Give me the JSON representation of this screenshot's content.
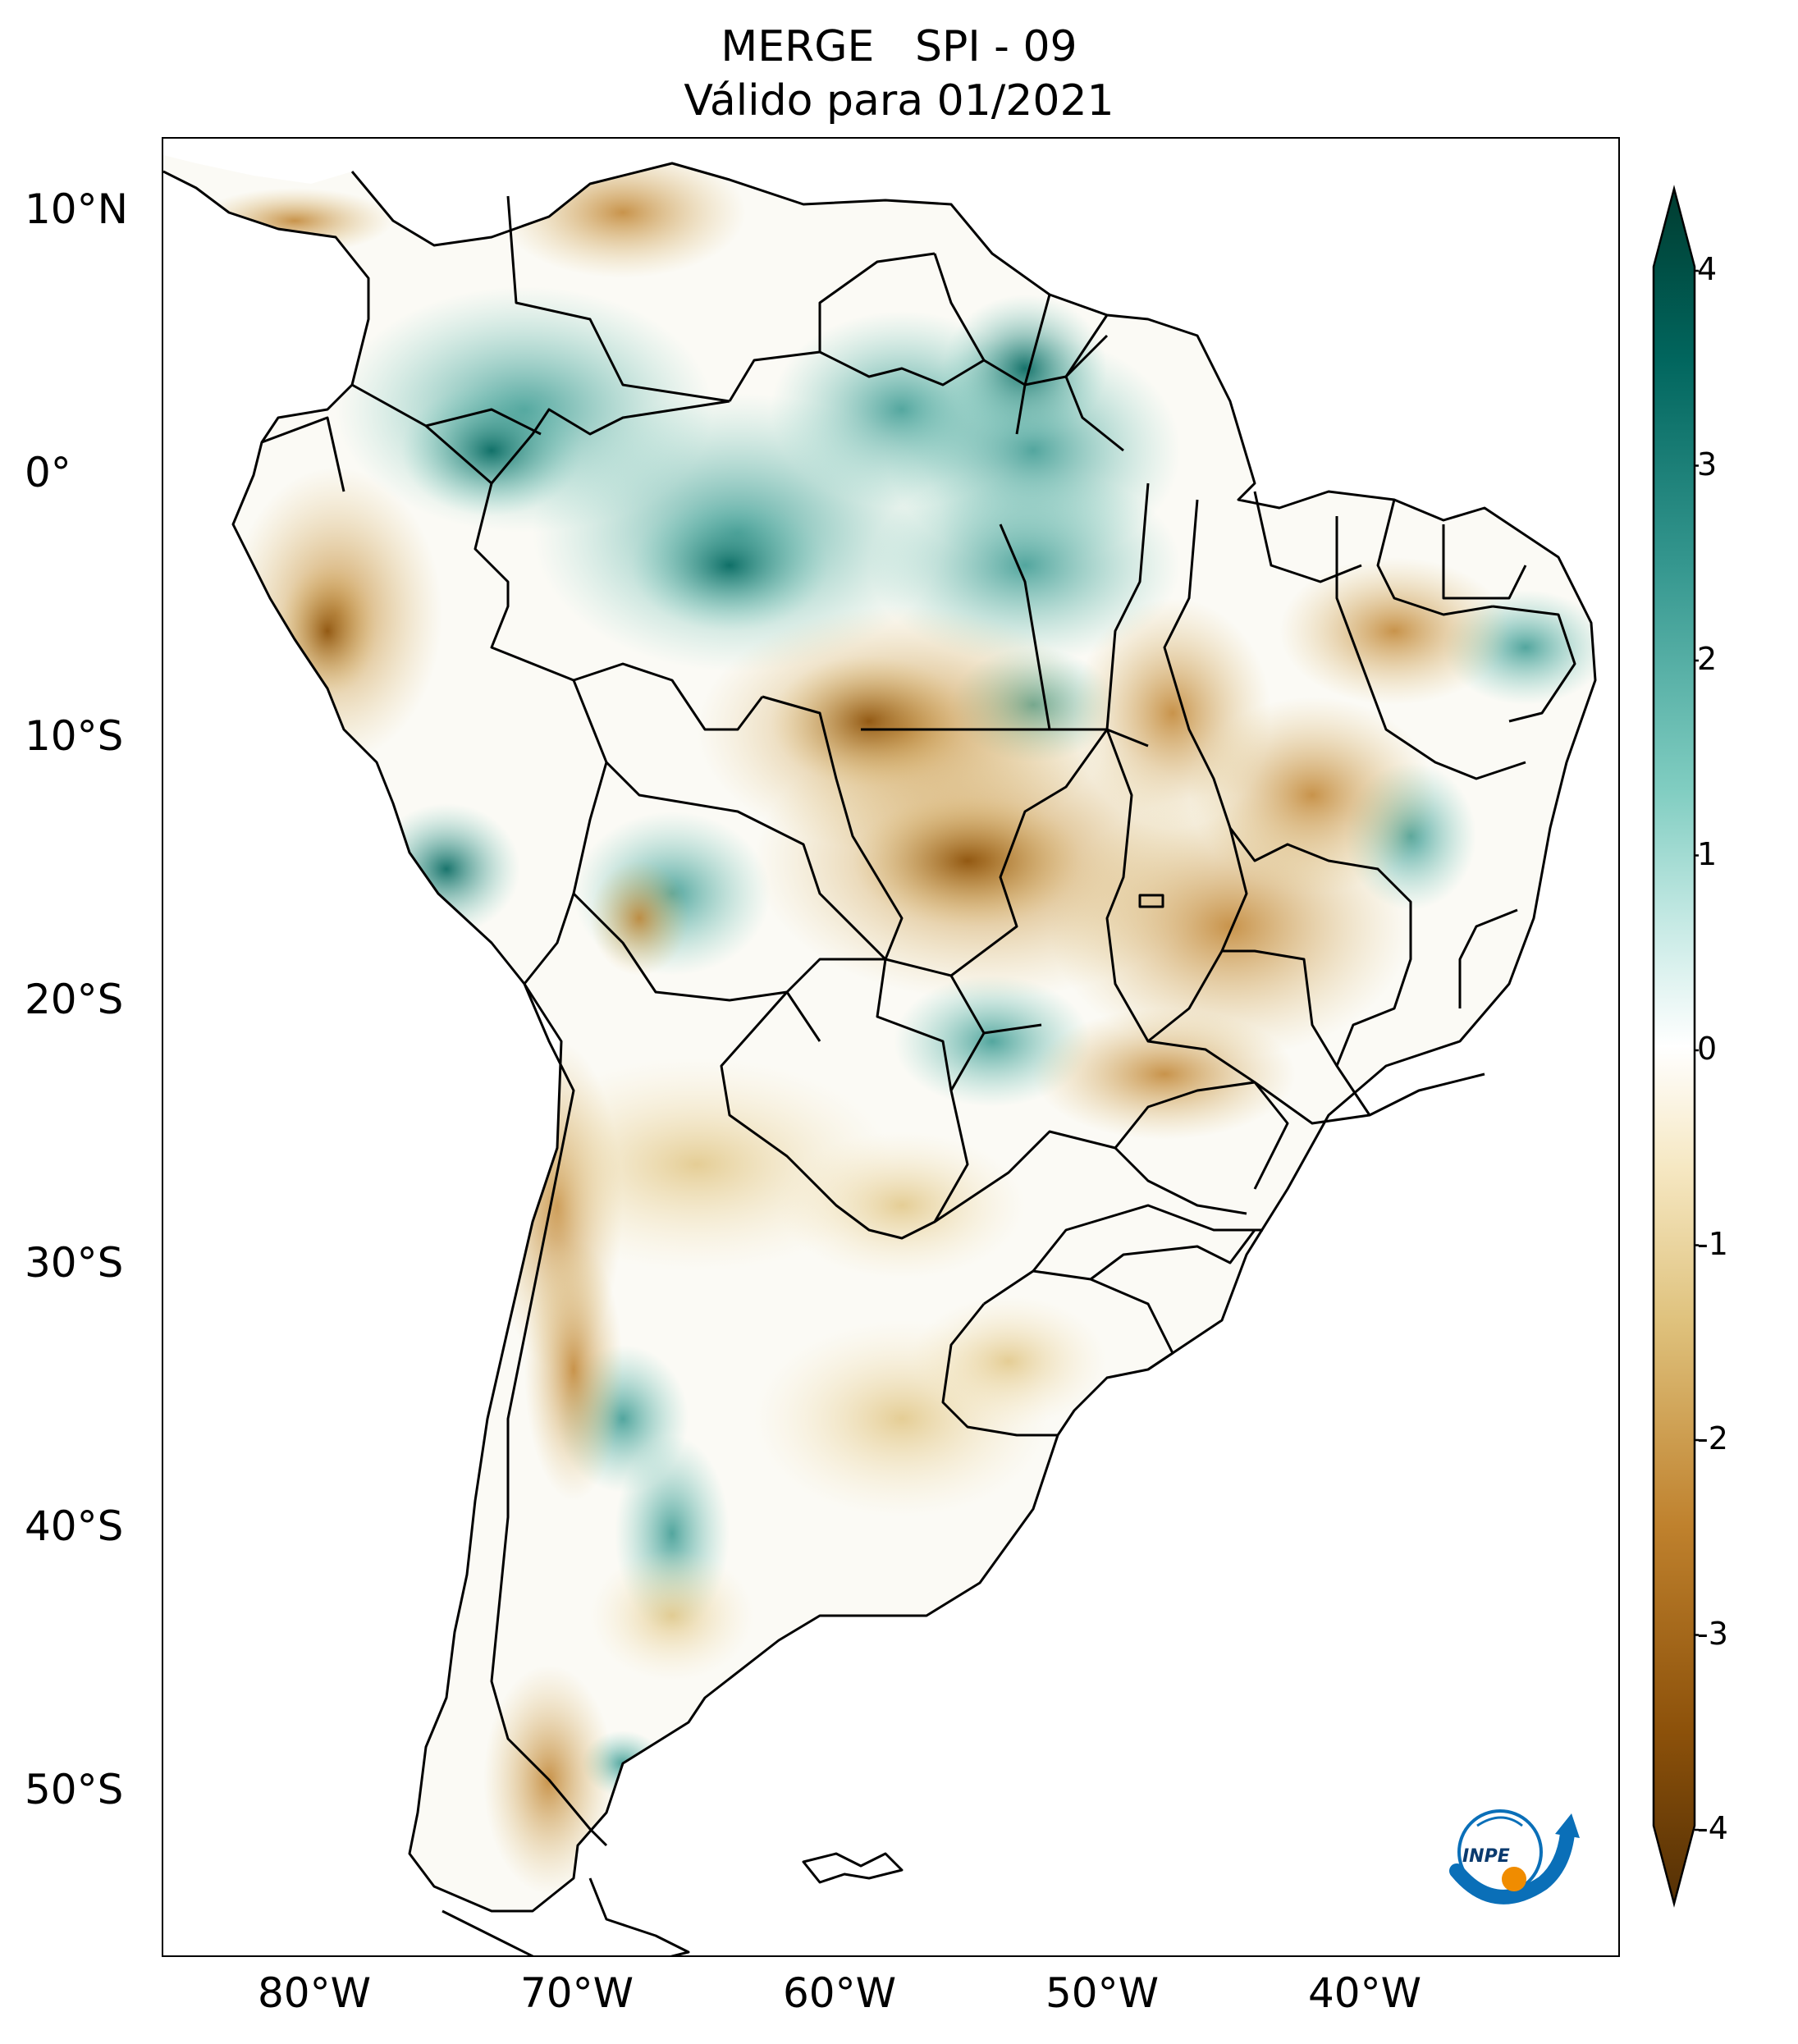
{
  "title": {
    "line1": "MERGE   SPI - 09",
    "line2": "Válido para 01/2021"
  },
  "axes": {
    "lat_ticks": [
      {
        "value": 10,
        "label": "10°N"
      },
      {
        "value": 0,
        "label": "0°"
      },
      {
        "value": -10,
        "label": "10°S"
      },
      {
        "value": -20,
        "label": "20°S"
      },
      {
        "value": -30,
        "label": "30°S"
      },
      {
        "value": -40,
        "label": "40°S"
      },
      {
        "value": -50,
        "label": "50°S"
      }
    ],
    "lon_ticks": [
      {
        "value": -80,
        "label": "80°W"
      },
      {
        "value": -70,
        "label": "70°W"
      },
      {
        "value": -60,
        "label": "60°W"
      },
      {
        "value": -50,
        "label": "50°W"
      },
      {
        "value": -40,
        "label": "40°W"
      }
    ],
    "lon_range": [
      -85,
      -30
    ],
    "lat_range": [
      -56,
      13
    ]
  },
  "colorbar": {
    "ticks": [
      "4",
      "3",
      "2",
      "1",
      "0",
      "-1",
      "-2",
      "-3",
      "-4"
    ],
    "range": [
      -4,
      4
    ],
    "extend": "both",
    "colormap": "BrBG",
    "colors": [
      "#543005",
      "#8c510a",
      "#bf812d",
      "#dfc27d",
      "#f6e8c3",
      "#ffffff",
      "#c7eae5",
      "#80cdc1",
      "#35978f",
      "#01665e",
      "#003c30"
    ]
  },
  "logo": {
    "text": "INPE",
    "colors": [
      "#0a6fb8",
      "#f08c00"
    ]
  }
}
